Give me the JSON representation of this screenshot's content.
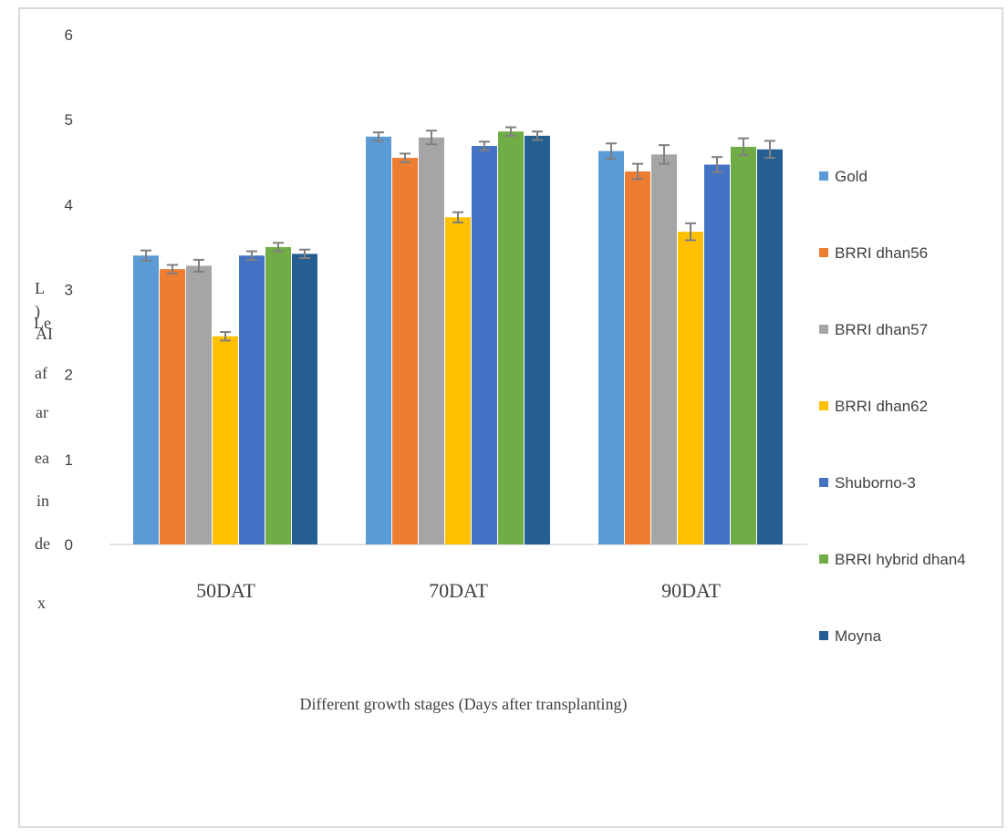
{
  "chart_data": {
    "type": "bar",
    "title": "",
    "xlabel": "Different growth stages (Days after transplanting)",
    "ylabel": "Leaf area index (LAI)",
    "ylabel_rendered": [
      "L",
      ")",
      "Le",
      "AI",
      "af",
      "ar",
      "ea",
      "in",
      "de",
      "x"
    ],
    "ylim": [
      0,
      6
    ],
    "yticks": [
      "0",
      "1",
      "2",
      "3",
      "4",
      "5",
      "6"
    ],
    "grid": false,
    "legend_position": "right",
    "categories": [
      "50DAT",
      "70DAT",
      "90DAT"
    ],
    "series": [
      {
        "name": "Gold",
        "color": "#5b9bd5",
        "values": [
          3.4,
          4.8,
          4.63
        ],
        "errors": [
          0.06,
          0.05,
          0.09
        ]
      },
      {
        "name": "BRRI dhan56",
        "color": "#ed7d31",
        "values": [
          3.24,
          4.55,
          4.39
        ],
        "errors": [
          0.05,
          0.05,
          0.09
        ]
      },
      {
        "name": "BRRI dhan57",
        "color": "#a5a5a5",
        "values": [
          3.28,
          4.79,
          4.59
        ],
        "errors": [
          0.07,
          0.08,
          0.11
        ]
      },
      {
        "name": "BRRI dhan62",
        "color": "#ffc000",
        "values": [
          2.45,
          3.85,
          3.68
        ],
        "errors": [
          0.05,
          0.06,
          0.1
        ]
      },
      {
        "name": "Shuborno-3",
        "color": "#4472c4",
        "values": [
          3.4,
          4.69,
          4.47
        ],
        "errors": [
          0.05,
          0.05,
          0.09
        ]
      },
      {
        "name": "BRRI hybrid dhan4",
        "color": "#70ad47",
        "values": [
          3.5,
          4.86,
          4.68
        ],
        "errors": [
          0.05,
          0.05,
          0.1
        ]
      },
      {
        "name": "Moyna",
        "color": "#255e91",
        "values": [
          3.42,
          4.81,
          4.65
        ],
        "errors": [
          0.05,
          0.05,
          0.1
        ]
      }
    ]
  }
}
